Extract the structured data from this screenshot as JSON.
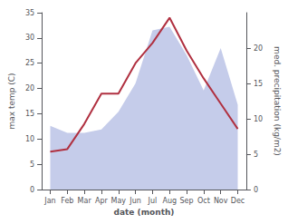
{
  "chart_data": {
    "type": "line",
    "xlabel": "date (month)",
    "ylabel": "max temp (C)",
    "y2label": "med. precipitation (kg/m2)",
    "categories": [
      "Jan",
      "Feb",
      "Mar",
      "Apr",
      "May",
      "Jun",
      "Jul",
      "Aug",
      "Sep",
      "Oct",
      "Nov",
      "Dec"
    ],
    "series": [
      {
        "type": "area",
        "axis": "y2",
        "color": "#c5ccea",
        "values": [
          9.0,
          8.0,
          8.0,
          8.5,
          11.0,
          15.0,
          22.5,
          23.0,
          19.0,
          14.0,
          20.0,
          12.0
        ]
      },
      {
        "type": "line",
        "color": "#b03040",
        "values": [
          7.5,
          8.0,
          13.0,
          19.0,
          19.0,
          25.0,
          29.0,
          34.0,
          27.5,
          22.0,
          17.0,
          12.0
        ]
      }
    ],
    "ylim": [
      0,
      35
    ],
    "yticks": [
      0,
      5,
      10,
      15,
      20,
      25,
      30,
      35
    ],
    "y2lim": [
      0,
      25
    ],
    "y2ticks": [
      0,
      5,
      10,
      15,
      20
    ],
    "grid": false
  }
}
